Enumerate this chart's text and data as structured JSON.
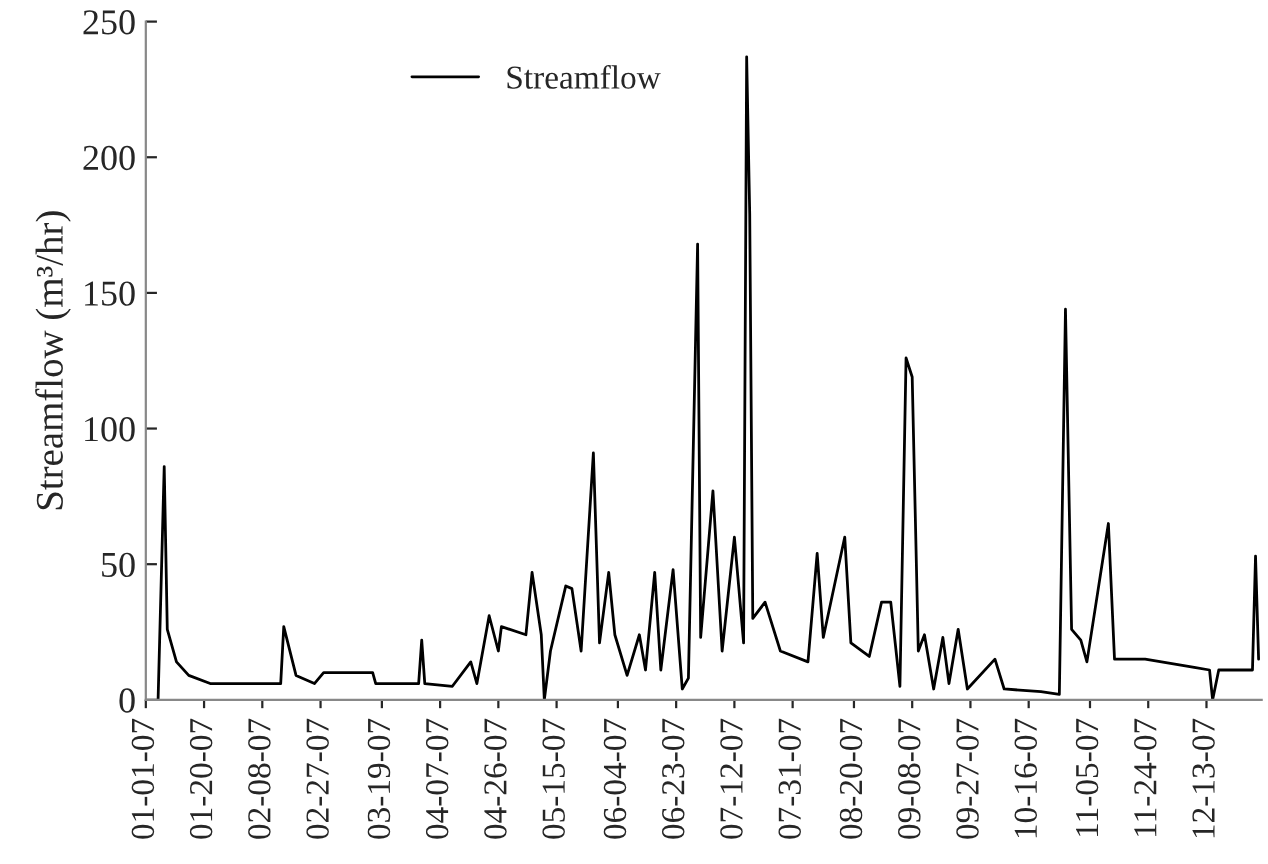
{
  "chart_data": {
    "type": "line",
    "ylabel": "Streamflow (m³/hr)",
    "x": [
      "2007-01-05",
      "2007-01-07",
      "2007-01-08",
      "2007-01-11",
      "2007-01-15",
      "2007-01-22",
      "2007-02-14",
      "2007-02-15",
      "2007-02-19",
      "2007-02-25",
      "2007-02-28",
      "2007-03-16",
      "2007-03-17",
      "2007-03-31",
      "2007-04-01",
      "2007-04-02",
      "2007-04-11",
      "2007-04-17",
      "2007-04-19",
      "2007-04-23",
      "2007-04-26",
      "2007-04-27",
      "2007-05-05",
      "2007-05-07",
      "2007-05-10",
      "2007-05-11",
      "2007-05-13",
      "2007-05-18",
      "2007-05-20",
      "2007-05-23",
      "2007-05-27",
      "2007-05-29",
      "2007-06-01",
      "2007-06-03",
      "2007-06-07",
      "2007-06-11",
      "2007-06-13",
      "2007-06-16",
      "2007-06-18",
      "2007-06-22",
      "2007-06-25",
      "2007-06-27",
      "2007-06-30",
      "2007-07-01",
      "2007-07-05",
      "2007-07-08",
      "2007-07-12",
      "2007-07-15",
      "2007-07-16",
      "2007-07-17",
      "2007-07-18",
      "2007-07-22",
      "2007-07-27",
      "2007-08-05",
      "2007-08-08",
      "2007-08-10",
      "2007-08-17",
      "2007-08-19",
      "2007-08-25",
      "2007-08-29",
      "2007-09-01",
      "2007-09-04",
      "2007-09-06",
      "2007-09-08",
      "2007-09-10",
      "2007-09-12",
      "2007-09-15",
      "2007-09-18",
      "2007-09-20",
      "2007-09-23",
      "2007-09-26",
      "2007-10-05",
      "2007-10-08",
      "2007-10-20",
      "2007-10-26",
      "2007-10-28",
      "2007-10-30",
      "2007-11-02",
      "2007-11-04",
      "2007-11-11",
      "2007-11-13",
      "2007-11-23",
      "2007-12-09",
      "2007-12-14",
      "2007-12-15",
      "2007-12-17",
      "2007-12-28",
      "2007-12-29",
      "2007-12-30"
    ],
    "series": [
      {
        "name": "Streamflow",
        "color": "#000000",
        "values": [
          0,
          86,
          26,
          14,
          9,
          6,
          6,
          27,
          9,
          6,
          10,
          10,
          6,
          6,
          22,
          6,
          5,
          14,
          6,
          31,
          18,
          27,
          24,
          47,
          24,
          0,
          18,
          42,
          41,
          18,
          91,
          21,
          47,
          24,
          9,
          24,
          11,
          47,
          11,
          48,
          4,
          8,
          168,
          23,
          77,
          18,
          60,
          21,
          237,
          179,
          30,
          36,
          18,
          14,
          54,
          23,
          60,
          21,
          16,
          36,
          36,
          5,
          126,
          119,
          18,
          24,
          4,
          23,
          6,
          26,
          4,
          15,
          4,
          3,
          2,
          144,
          26,
          22,
          14,
          65,
          15,
          15,
          12,
          11,
          0,
          11,
          11,
          53,
          15
        ]
      }
    ],
    "xlim": [
      "2007-01-01",
      "2007-12-31"
    ],
    "xticks": [
      {
        "value": "2007-01-01",
        "label": "01-01-07"
      },
      {
        "value": "2007-01-20",
        "label": "01-20-07"
      },
      {
        "value": "2007-02-08",
        "label": "02-08-07"
      },
      {
        "value": "2007-02-27",
        "label": "02-27-07"
      },
      {
        "value": "2007-03-19",
        "label": "03-19-07"
      },
      {
        "value": "2007-04-07",
        "label": "04-07-07"
      },
      {
        "value": "2007-04-26",
        "label": "04-26-07"
      },
      {
        "value": "2007-05-15",
        "label": "05-15-07"
      },
      {
        "value": "2007-06-04",
        "label": "06-04-07"
      },
      {
        "value": "2007-06-23",
        "label": "06-23-07"
      },
      {
        "value": "2007-07-12",
        "label": "07-12-07"
      },
      {
        "value": "2007-07-31",
        "label": "07-31-07"
      },
      {
        "value": "2007-08-20",
        "label": "08-20-07"
      },
      {
        "value": "2007-09-08",
        "label": "09-08-07"
      },
      {
        "value": "2007-09-27",
        "label": "09-27-07"
      },
      {
        "value": "2007-10-16",
        "label": "10-16-07"
      },
      {
        "value": "2007-11-05",
        "label": "11-05-07"
      },
      {
        "value": "2007-11-24",
        "label": "11-24-07"
      },
      {
        "value": "2007-12-13",
        "label": "12-13-07"
      }
    ],
    "ylim": [
      0,
      250
    ],
    "yticks": [
      0,
      50,
      100,
      150,
      200,
      250
    ],
    "grid": false,
    "legend": "top",
    "line_style": "solid",
    "marker": "none"
  }
}
